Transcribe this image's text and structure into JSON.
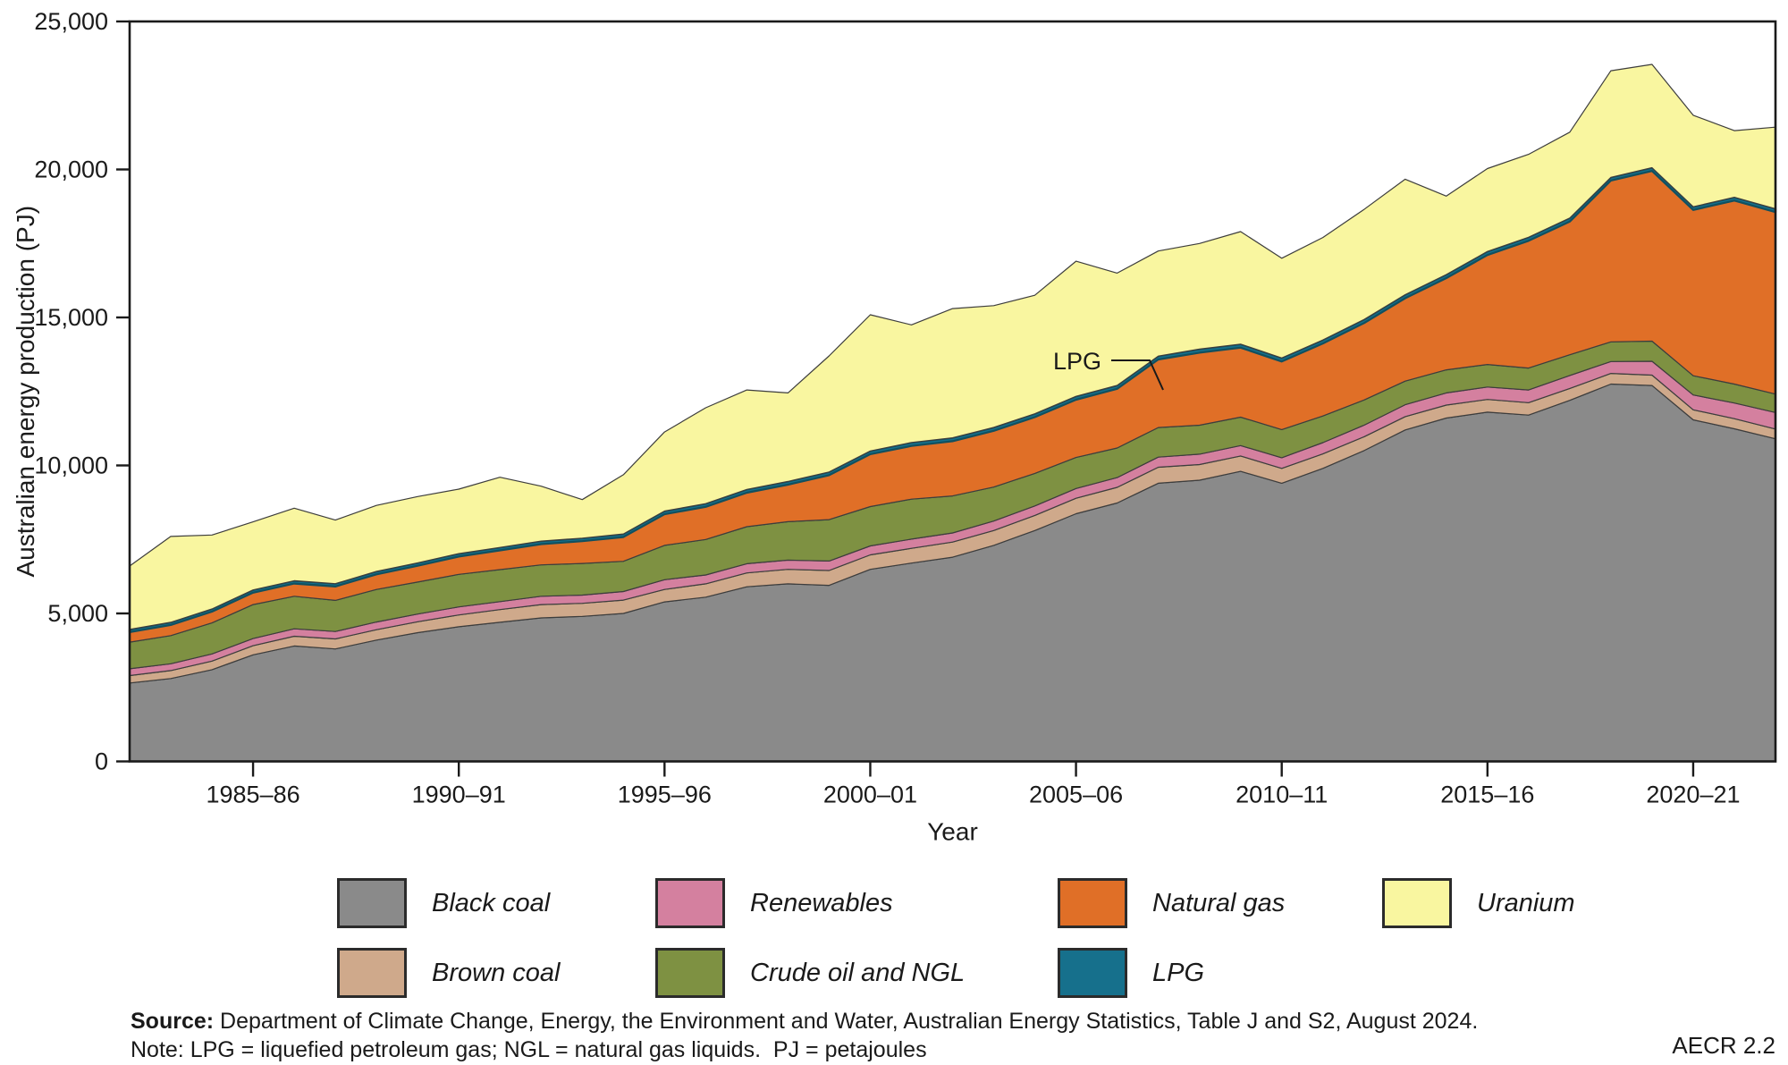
{
  "y_axis": {
    "label": "Australian energy production (PJ)",
    "tick_values": [
      0,
      5000,
      10000,
      15000,
      20000,
      25000
    ],
    "tick_labels": [
      "0",
      "5,000",
      "10,000",
      "15,000",
      "20,000",
      "25,000"
    ]
  },
  "x_axis": {
    "label": "Year",
    "tick_labels": [
      "1985–86",
      "1990–91",
      "1995–96",
      "2000–01",
      "2005–06",
      "2010–11",
      "2015–16",
      "2020–21"
    ],
    "tick_indices": [
      3,
      8,
      13,
      18,
      23,
      28,
      33,
      38
    ]
  },
  "annotation": {
    "label": "LPG"
  },
  "legend": {
    "rows": [
      [
        {
          "label": "Black coal",
          "color": "#8a8a8a"
        },
        {
          "label": "Renewables",
          "color": "#d4809f"
        },
        {
          "label": "Natural gas",
          "color": "#e06f27"
        },
        {
          "label": "Uranium",
          "color": "#f9f6a0"
        }
      ],
      [
        {
          "label": "Brown coal",
          "color": "#cfa98b"
        },
        {
          "label": "Crude oil and NGL",
          "color": "#7e9142"
        },
        {
          "label": "LPG",
          "color": "#16708c"
        }
      ]
    ]
  },
  "source": {
    "label": "Source:",
    "text": " Department of Climate Change, Energy, the Environment and Water, Australian Energy Statistics, Table J and S2, August 2024."
  },
  "note": "Note: LPG = liquefied petroleum gas; NGL = natural gas liquids.  PJ = petajoules",
  "code": "AECR 2.2",
  "chart_data": {
    "type": "area",
    "stacked": true,
    "title": "",
    "xlabel": "Year",
    "ylabel": "Australian energy production (PJ)",
    "ylim": [
      0,
      25000
    ],
    "grid": false,
    "legend_position": "bottom",
    "units": "PJ",
    "years": [
      "1982–83",
      "1983–84",
      "1984–85",
      "1985–86",
      "1986–87",
      "1987–88",
      "1988–89",
      "1989–90",
      "1990–91",
      "1991–92",
      "1992–93",
      "1993–94",
      "1994–95",
      "1995–96",
      "1996–97",
      "1997–98",
      "1998–99",
      "1999–00",
      "2000–01",
      "2001–02",
      "2002–03",
      "2003–04",
      "2004–05",
      "2005–06",
      "2006–07",
      "2007–08",
      "2008–09",
      "2009–10",
      "2010–11",
      "2011–12",
      "2012–13",
      "2013–14",
      "2014–15",
      "2015–16",
      "2016–17",
      "2017–18",
      "2018–19",
      "2019–20",
      "2020–21",
      "2021–22",
      "2022–23"
    ],
    "series": [
      {
        "name": "Black coal",
        "color": "#8a8a8a",
        "values": [
          2650,
          2800,
          3100,
          3600,
          3900,
          3800,
          4100,
          4350,
          4550,
          4700,
          4850,
          4900,
          5000,
          5390,
          5550,
          5900,
          6000,
          5950,
          6490,
          6700,
          6900,
          7300,
          7800,
          8370,
          8730,
          9400,
          9500,
          9800,
          9400,
          9900,
          10500,
          11200,
          11600,
          11800,
          11700,
          12200,
          12750,
          12700,
          11540,
          11240,
          10900
        ]
      },
      {
        "name": "Brown coal",
        "color": "#cfa98b",
        "values": [
          250,
          270,
          290,
          310,
          330,
          340,
          350,
          370,
          400,
          430,
          450,
          440,
          450,
          420,
          450,
          470,
          490,
          500,
          490,
          500,
          510,
          500,
          510,
          520,
          530,
          540,
          530,
          520,
          500,
          490,
          470,
          450,
          440,
          430,
          420,
          400,
          360,
          350,
          340,
          340,
          330
        ]
      },
      {
        "name": "Renewables",
        "color": "#d4809f",
        "values": [
          230,
          230,
          240,
          240,
          250,
          250,
          260,
          260,
          270,
          270,
          280,
          280,
          290,
          330,
          300,
          310,
          310,
          320,
          300,
          310,
          310,
          320,
          320,
          330,
          330,
          340,
          350,
          350,
          360,
          380,
          390,
          400,
          410,
          420,
          430,
          440,
          400,
          470,
          500,
          530,
          560
        ]
      },
      {
        "name": "Crude oil and NGL",
        "color": "#7e9142",
        "values": [
          900,
          950,
          1050,
          1150,
          1100,
          1050,
          1100,
          1080,
          1100,
          1080,
          1060,
          1070,
          1020,
          1160,
          1200,
          1250,
          1300,
          1400,
          1330,
          1350,
          1250,
          1150,
          1100,
          1050,
          1000,
          1000,
          980,
          960,
          950,
          900,
          850,
          800,
          780,
          760,
          740,
          700,
          665,
          680,
          650,
          640,
          620
        ]
      },
      {
        "name": "Natural gas",
        "color": "#e06f27",
        "values": [
          340,
          360,
          380,
          400,
          430,
          470,
          510,
          550,
          600,
          650,
          700,
          750,
          820,
          1050,
          1100,
          1150,
          1250,
          1500,
          1770,
          1800,
          1850,
          1900,
          1900,
          1950,
          2000,
          2300,
          2450,
          2350,
          2300,
          2450,
          2600,
          2800,
          3100,
          3700,
          4300,
          4500,
          5450,
          5750,
          5600,
          6200,
          6150
        ]
      },
      {
        "name": "LPG",
        "color": "#16708c",
        "values": [
          90,
          90,
          90,
          95,
          95,
          95,
          100,
          100,
          100,
          100,
          105,
          105,
          105,
          110,
          110,
          110,
          110,
          110,
          110,
          115,
          115,
          115,
          115,
          115,
          115,
          115,
          120,
          120,
          120,
          120,
          120,
          120,
          120,
          120,
          120,
          120,
          110,
          110,
          110,
          110,
          110
        ]
      },
      {
        "name": "Uranium",
        "color": "#f9f6a0",
        "values": [
          2140,
          2900,
          2500,
          2300,
          2450,
          2150,
          2230,
          2240,
          2180,
          2370,
          1855,
          1300,
          2000,
          2670,
          3240,
          3360,
          2990,
          3920,
          4600,
          3975,
          4365,
          4115,
          4005,
          4565,
          3795,
          3550,
          3570,
          3800,
          3370,
          3460,
          3720,
          3900,
          2650,
          2800,
          2800,
          2900,
          3600,
          3490,
          3090,
          2250,
          2760
        ]
      }
    ]
  }
}
